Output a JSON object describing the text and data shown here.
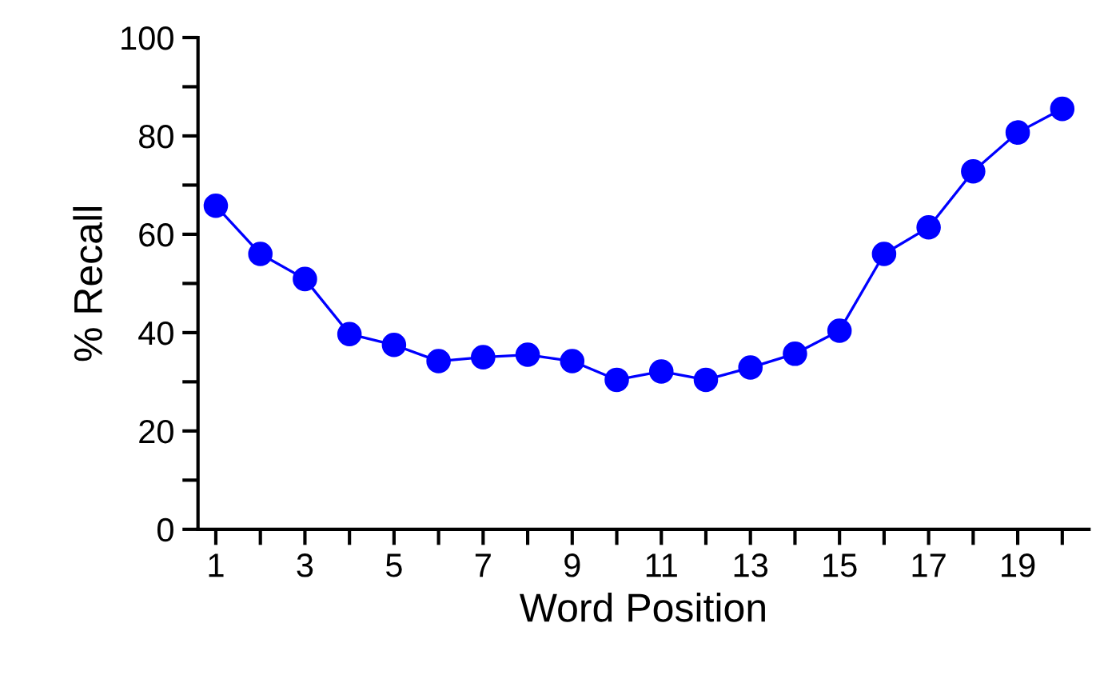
{
  "chart_data": {
    "type": "line",
    "xlabel": "Word Position",
    "ylabel": "% Recall",
    "x": [
      1,
      2,
      3,
      4,
      5,
      6,
      7,
      8,
      9,
      10,
      11,
      12,
      13,
      14,
      15,
      16,
      17,
      18,
      19,
      20
    ],
    "series": [
      {
        "color": "#0000ff",
        "values": [
          65.8,
          56,
          50.9,
          39.7,
          37.5,
          34.2,
          35,
          35.5,
          34.2,
          30.4,
          32.1,
          30.4,
          32.9,
          35.7,
          40.4,
          56,
          61.4,
          72.8,
          80.7,
          85.5
        ]
      }
    ],
    "xlim": [
      0.6,
      20.6
    ],
    "ylim": [
      0,
      100
    ],
    "xticks": [
      1,
      {
        "value": 2,
        "label": null
      },
      3,
      {
        "value": 4,
        "label": null
      },
      5,
      {
        "value": 6,
        "label": null
      },
      7,
      {
        "value": 8,
        "label": null
      },
      9,
      {
        "value": 10,
        "label": null
      },
      11,
      {
        "value": 12,
        "label": null
      },
      13,
      {
        "value": 14,
        "label": null
      },
      15,
      {
        "value": 16,
        "label": null
      },
      17,
      {
        "value": 18,
        "label": null
      },
      19,
      {
        "value": 20,
        "label": null
      }
    ],
    "yticks": [
      0,
      {
        "value": 10,
        "label": null
      },
      20,
      {
        "value": 30,
        "label": null
      },
      40,
      {
        "value": 50,
        "label": null
      },
      60,
      {
        "value": 70,
        "label": null
      },
      80,
      {
        "value": 90,
        "label": null
      },
      100
    ],
    "grid": false,
    "legend": false,
    "marker": "circle",
    "line_style": "solid"
  }
}
